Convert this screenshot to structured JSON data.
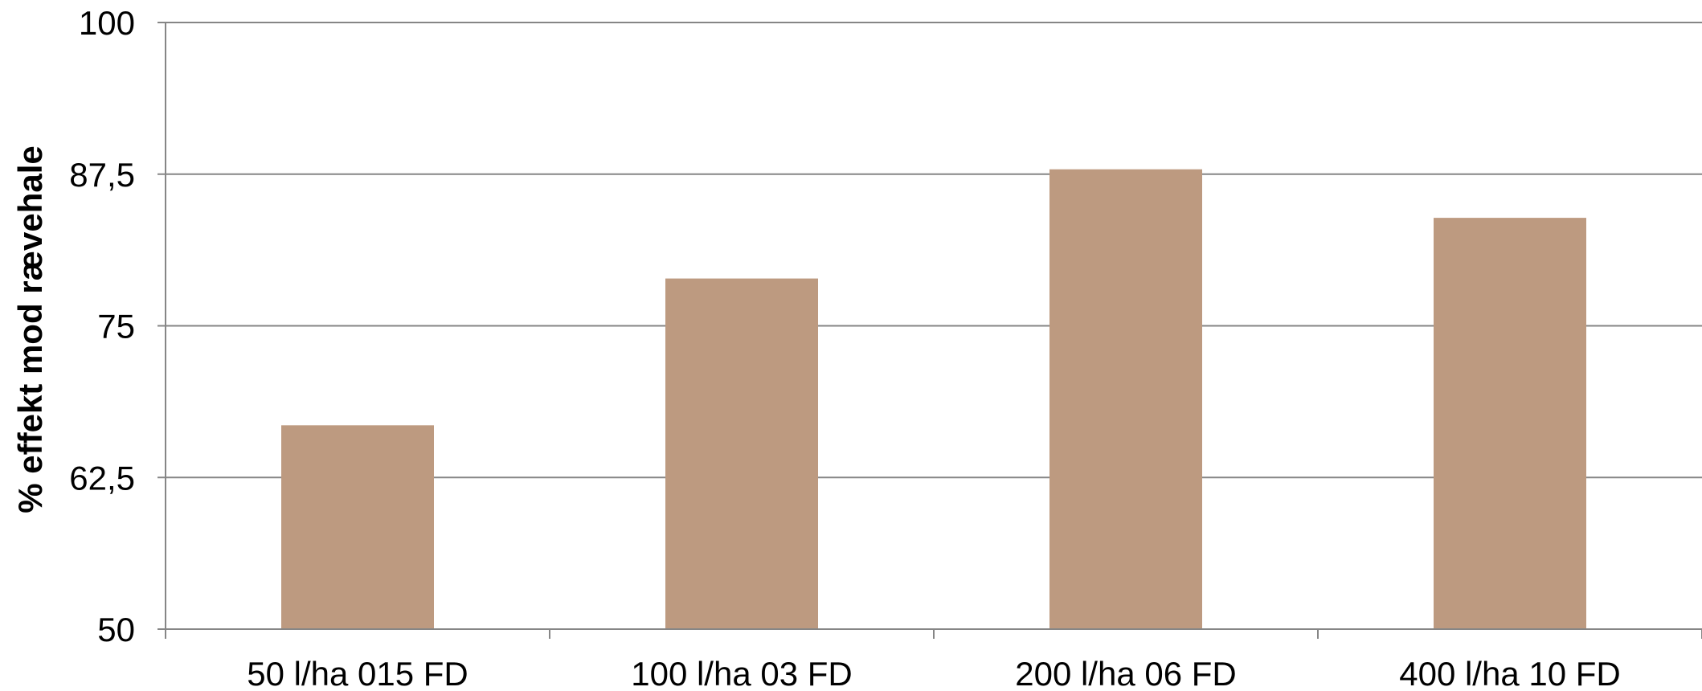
{
  "chart_data": {
    "type": "bar",
    "title": "",
    "xlabel": "",
    "ylabel": "% effekt mod rævehale",
    "categories": [
      "50 l/ha 015 FD",
      "100 l/ha 03 FD",
      "200 l/ha 06 FD",
      "400 l/ha 10 FD"
    ],
    "values": [
      66.8,
      78.9,
      87.9,
      83.9
    ],
    "ylim": [
      50,
      100
    ],
    "yticks": [
      50,
      62.5,
      75,
      87.5,
      100
    ],
    "ytick_labels": [
      "50",
      "62,5",
      "75",
      "87,5",
      "100"
    ],
    "grid": true,
    "legend": "none",
    "colors": {
      "bar": "#bd9a80",
      "grid": "#868686",
      "axis": "#868686",
      "text": "#000000"
    }
  }
}
